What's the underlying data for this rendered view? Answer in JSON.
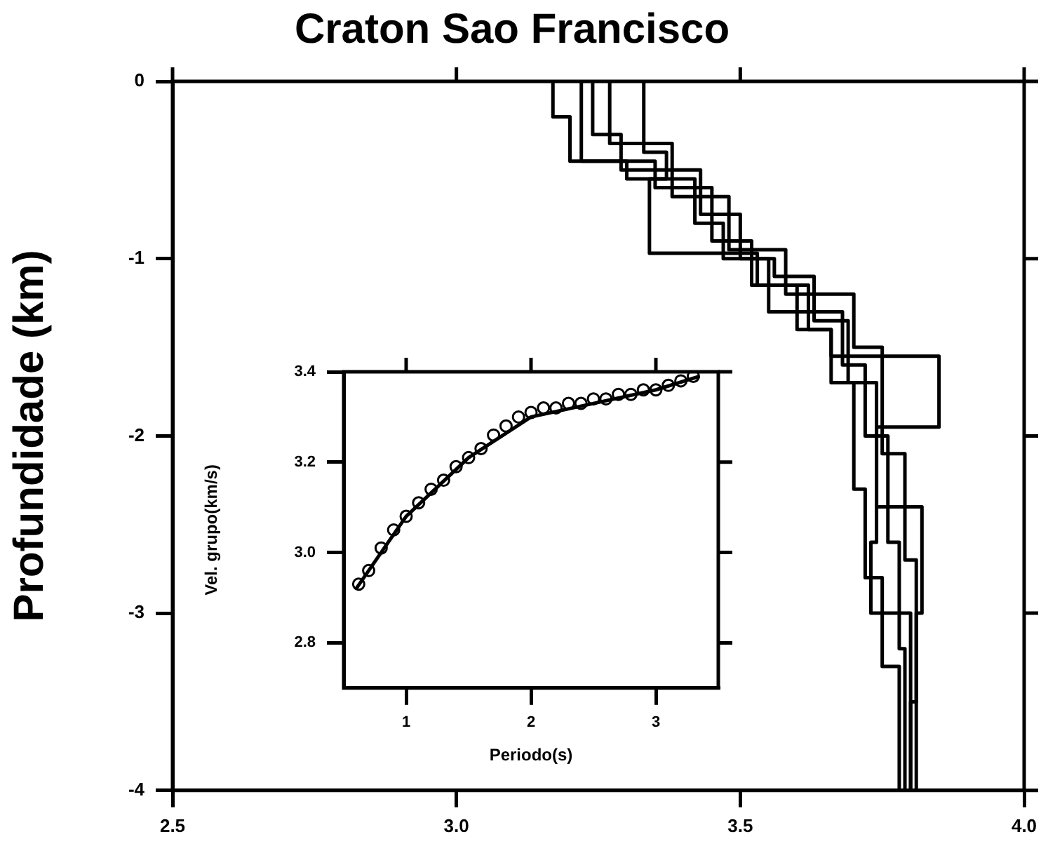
{
  "chart_data": [
    {
      "type": "line",
      "title": "Craton Sao Francisco",
      "ylabel": "Profundidade (km)",
      "xlim": [
        2.5,
        4.0
      ],
      "ylim": [
        -4,
        0
      ],
      "xticks": [
        2.5,
        {
          "value": 3,
          "label": "3.0"
        },
        3.5,
        {
          "value": 4,
          "label": "4.0"
        }
      ],
      "yticks": [
        0,
        -1,
        -2,
        -3,
        -4
      ],
      "marker": "none",
      "legend": false,
      "series": [
        {
          "color": "#000000",
          "x": [
            3.17,
            3.17,
            3.2,
            3.2,
            3.35,
            3.35,
            3.45,
            3.45,
            3.52,
            3.52,
            3.62,
            3.62,
            3.66,
            3.66,
            3.7,
            3.7,
            3.72,
            3.72,
            3.75,
            3.75,
            3.78,
            3.78
          ],
          "values": [
            0,
            -0.2,
            -0.2,
            -0.45,
            -0.45,
            -0.6,
            -0.6,
            -0.9,
            -0.9,
            -1.15,
            -1.15,
            -1.4,
            -1.4,
            -1.7,
            -1.7,
            -2.3,
            -2.3,
            -2.8,
            -2.8,
            -3.3,
            -3.3,
            -4
          ]
        },
        {
          "color": "#000000",
          "x": [
            3.22,
            3.22,
            3.3,
            3.3,
            3.42,
            3.42,
            3.47,
            3.47,
            3.55,
            3.55,
            3.68,
            3.68,
            3.72,
            3.72,
            3.76,
            3.76,
            3.78,
            3.78,
            3.79,
            3.79
          ],
          "values": [
            0,
            -0.45,
            -0.45,
            -0.55,
            -0.55,
            -0.8,
            -0.8,
            -1.0,
            -1.0,
            -1.3,
            -1.3,
            -1.6,
            -1.6,
            -2.0,
            -2.0,
            -2.6,
            -2.6,
            -3.2,
            -3.2,
            -4
          ]
        },
        {
          "color": "#000000",
          "x": [
            3.27,
            3.27,
            3.38,
            3.38,
            3.48,
            3.48,
            3.58,
            3.58,
            3.7,
            3.7,
            3.75,
            3.75,
            3.79,
            3.79,
            3.81,
            3.81,
            3.8,
            3.8
          ],
          "values": [
            0,
            -0.35,
            -0.35,
            -0.65,
            -0.65,
            -0.95,
            -0.95,
            -1.2,
            -1.2,
            -1.5,
            -1.5,
            -2.1,
            -2.1,
            -2.7,
            -2.7,
            -3.5,
            -3.5,
            -4
          ]
        },
        {
          "color": "#000000",
          "x": [
            3.33,
            3.33,
            3.37,
            3.37,
            3.34,
            3.34,
            3.53,
            3.53,
            3.6,
            3.6,
            3.66,
            3.66,
            3.85,
            3.85,
            3.74,
            3.74,
            3.73,
            3.73,
            3.8,
            3.8
          ],
          "values": [
            0,
            -0.4,
            -0.4,
            -0.55,
            -0.55,
            -0.97,
            -0.97,
            -1.15,
            -1.15,
            -1.4,
            -1.4,
            -1.55,
            -1.55,
            -1.95,
            -1.95,
            -2.6,
            -2.6,
            -3.0,
            -3.0,
            -4
          ]
        },
        {
          "color": "#000000",
          "x": [
            3.24,
            3.24,
            3.29,
            3.29,
            3.43,
            3.43,
            3.5,
            3.5,
            3.56,
            3.56,
            3.63,
            3.63,
            3.69,
            3.69,
            3.74,
            3.74,
            3.82,
            3.82,
            3.81,
            3.81
          ],
          "values": [
            0,
            -0.3,
            -0.3,
            -0.5,
            -0.5,
            -0.75,
            -0.75,
            -1.0,
            -1.0,
            -1.1,
            -1.1,
            -1.35,
            -1.35,
            -1.7,
            -1.7,
            -2.4,
            -2.4,
            -3.0,
            -3.0,
            -4
          ]
        }
      ]
    },
    {
      "type": "scatter",
      "xlabel": "Periodo(s)",
      "ylabel": "Vel. grupo(km/s)",
      "xlim": [
        0.5,
        3.5
      ],
      "ylim": [
        2.7,
        3.4
      ],
      "xticks": [
        1,
        2,
        3
      ],
      "yticks": [
        2.8,
        {
          "value": 3,
          "label": "3.0"
        },
        3.2,
        3.4
      ],
      "legend": false,
      "series": [
        {
          "marker": "circle",
          "color": "#000000",
          "x": [
            0.62,
            0.7,
            0.8,
            0.9,
            1.0,
            1.1,
            1.2,
            1.3,
            1.4,
            1.5,
            1.6,
            1.7,
            1.8,
            1.9,
            2.0,
            2.1,
            2.2,
            2.3,
            2.4,
            2.5,
            2.6,
            2.7,
            2.8,
            2.9,
            3.0,
            3.1,
            3.2,
            3.3
          ],
          "values": [
            2.93,
            2.96,
            3.01,
            3.05,
            3.08,
            3.11,
            3.14,
            3.16,
            3.19,
            3.21,
            3.23,
            3.26,
            3.28,
            3.3,
            3.31,
            3.32,
            3.32,
            3.33,
            3.33,
            3.34,
            3.34,
            3.35,
            3.35,
            3.36,
            3.36,
            3.37,
            3.38,
            3.39
          ]
        },
        {
          "type": "line",
          "marker": "none",
          "color": "#000000",
          "x": [
            0.6,
            1.0,
            1.5,
            2.0,
            2.5,
            3.0,
            3.35
          ],
          "values": [
            2.92,
            3.08,
            3.21,
            3.3,
            3.33,
            3.36,
            3.39
          ]
        }
      ]
    }
  ]
}
